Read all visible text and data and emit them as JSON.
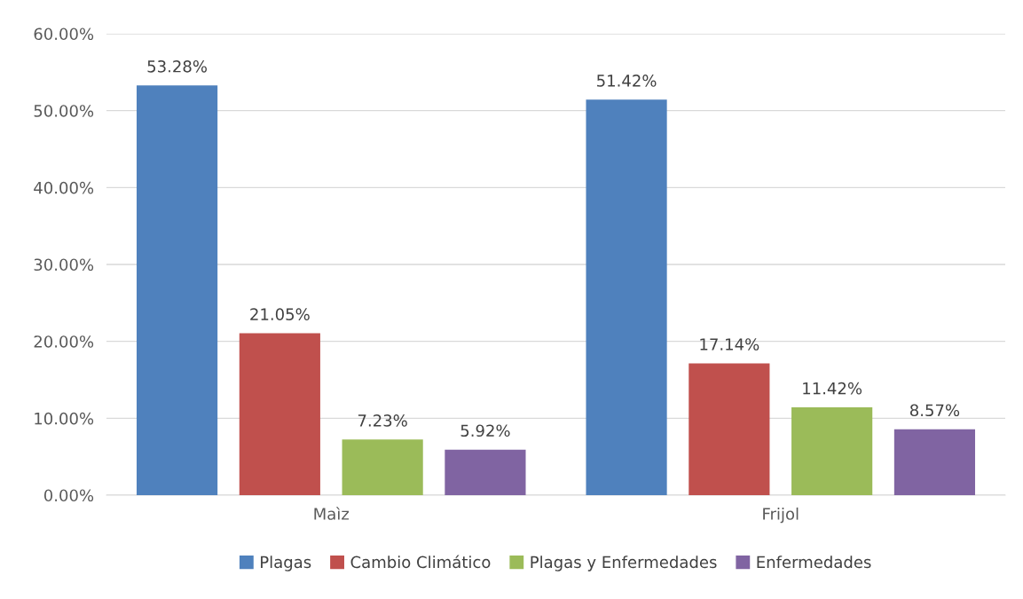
{
  "chart_data": {
    "type": "bar",
    "categories": [
      "Maìz",
      "Frijol"
    ],
    "series": [
      {
        "name": "Plagas",
        "color": "#4f81bd",
        "values": [
          53.28,
          51.42
        ],
        "value_labels": [
          "53.28%",
          "51.42%"
        ]
      },
      {
        "name": "Cambio Climático",
        "color": "#c0504d",
        "values": [
          21.05,
          17.14
        ],
        "value_labels": [
          "21.05%",
          "17.14%"
        ]
      },
      {
        "name": "Plagas y Enfermedades",
        "color": "#9bbb59",
        "values": [
          7.23,
          11.42
        ],
        "value_labels": [
          "7.23%",
          "11.42%"
        ]
      },
      {
        "name": "Enfermedades",
        "color": "#8064a2",
        "values": [
          5.92,
          8.57
        ],
        "value_labels": [
          "5.92%",
          "8.57%"
        ]
      }
    ],
    "ylim": [
      0,
      60
    ],
    "yticks": [
      {
        "value": 0,
        "label": "0.00%"
      },
      {
        "value": 10,
        "label": "10.00%"
      },
      {
        "value": 20,
        "label": "20.00%"
      },
      {
        "value": 30,
        "label": "30.00%"
      },
      {
        "value": 40,
        "label": "40.00%"
      },
      {
        "value": 50,
        "label": "50.00%"
      },
      {
        "value": 60,
        "label": "60.00%"
      }
    ],
    "grid": "y",
    "legend": "bottom"
  }
}
